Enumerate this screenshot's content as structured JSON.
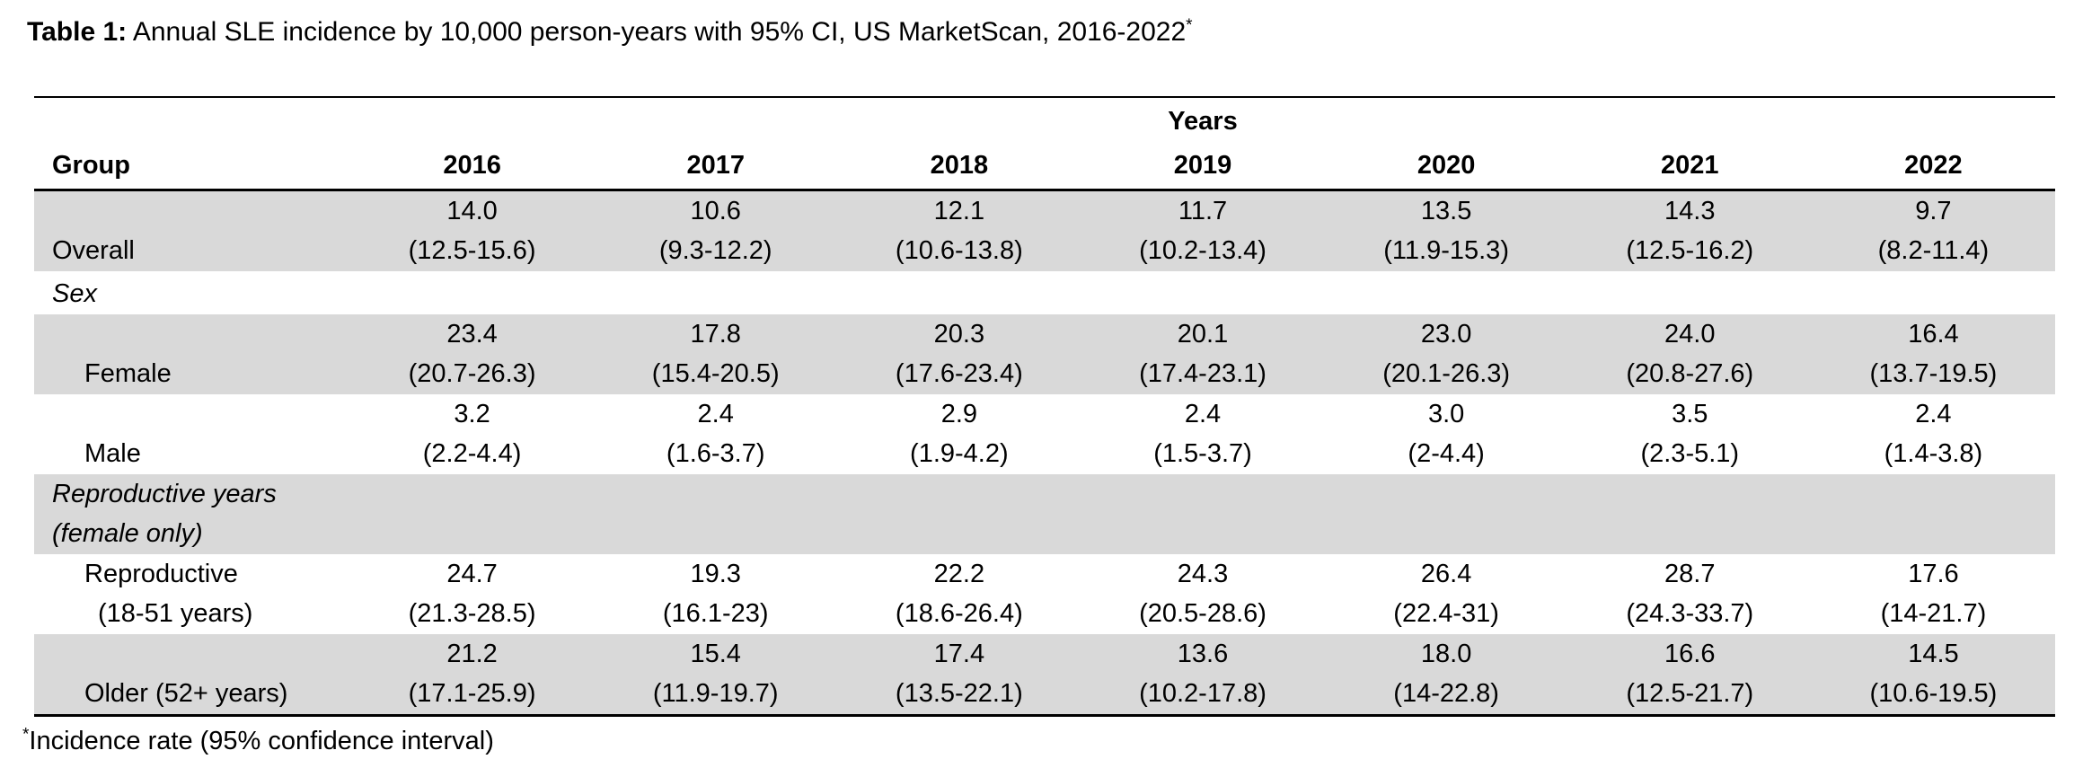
{
  "title": {
    "label": "Table 1:",
    "text": " Annual SLE incidence by 10,000 person-years with 95% CI, US MarketScan, 2016-2022",
    "superscript": "*"
  },
  "colors": {
    "row_shade": "#d9d9d9",
    "text": "#000000",
    "background": "#ffffff"
  },
  "table": {
    "years_header": "Years",
    "group_header": "Group",
    "columns": [
      "2016",
      "2017",
      "2018",
      "2019",
      "2020",
      "2021",
      "2022"
    ],
    "rows": [
      {
        "label": "Overall",
        "rates": [
          "14.0",
          "10.6",
          "12.1",
          "11.7",
          "13.5",
          "14.3",
          "9.7"
        ],
        "cis": [
          "(12.5-15.6)",
          "(9.3-12.2)",
          "(10.6-13.8)",
          "(10.2-13.4)",
          "(11.9-15.3)",
          "(12.5-16.2)",
          "(8.2-11.4)"
        ]
      },
      {
        "label": "Sex"
      },
      {
        "label": "Female",
        "rates": [
          "23.4",
          "17.8",
          "20.3",
          "20.1",
          "23.0",
          "24.0",
          "16.4"
        ],
        "cis": [
          "(20.7-26.3)",
          "(15.4-20.5)",
          "(17.6-23.4)",
          "(17.4-23.1)",
          "(20.1-26.3)",
          "(20.8-27.6)",
          "(13.7-19.5)"
        ]
      },
      {
        "label": "Male",
        "rates": [
          "3.2",
          "2.4",
          "2.9",
          "2.4",
          "3.0",
          "3.5",
          "2.4"
        ],
        "cis": [
          "(2.2-4.4)",
          "(1.6-3.7)",
          "(1.9-4.2)",
          "(1.5-3.7)",
          "(2-4.4)",
          "(2.3-5.1)",
          "(1.4-3.8)"
        ]
      },
      {
        "label_line1": "Reproductive years",
        "label_line2": "(female only)"
      },
      {
        "label_line1": "Reproductive",
        "label_line2": "(18-51 years)",
        "rates": [
          "24.7",
          "19.3",
          "22.2",
          "24.3",
          "26.4",
          "28.7",
          "17.6"
        ],
        "cis": [
          "(21.3-28.5)",
          "(16.1-23)",
          "(18.6-26.4)",
          "(20.5-28.6)",
          "(22.4-31)",
          "(24.3-33.7)",
          "(14-21.7)"
        ]
      },
      {
        "label": "Older (52+ years)",
        "rates": [
          "21.2",
          "15.4",
          "17.4",
          "13.6",
          "18.0",
          "16.6",
          "14.5"
        ],
        "cis": [
          "(17.1-25.9)",
          "(11.9-19.7)",
          "(13.5-22.1)",
          "(10.2-17.8)",
          "(14-22.8)",
          "(12.5-21.7)",
          "(10.6-19.5)"
        ]
      }
    ]
  },
  "footnote": {
    "superscript": "*",
    "text": "Incidence rate (95% confidence interval)"
  }
}
